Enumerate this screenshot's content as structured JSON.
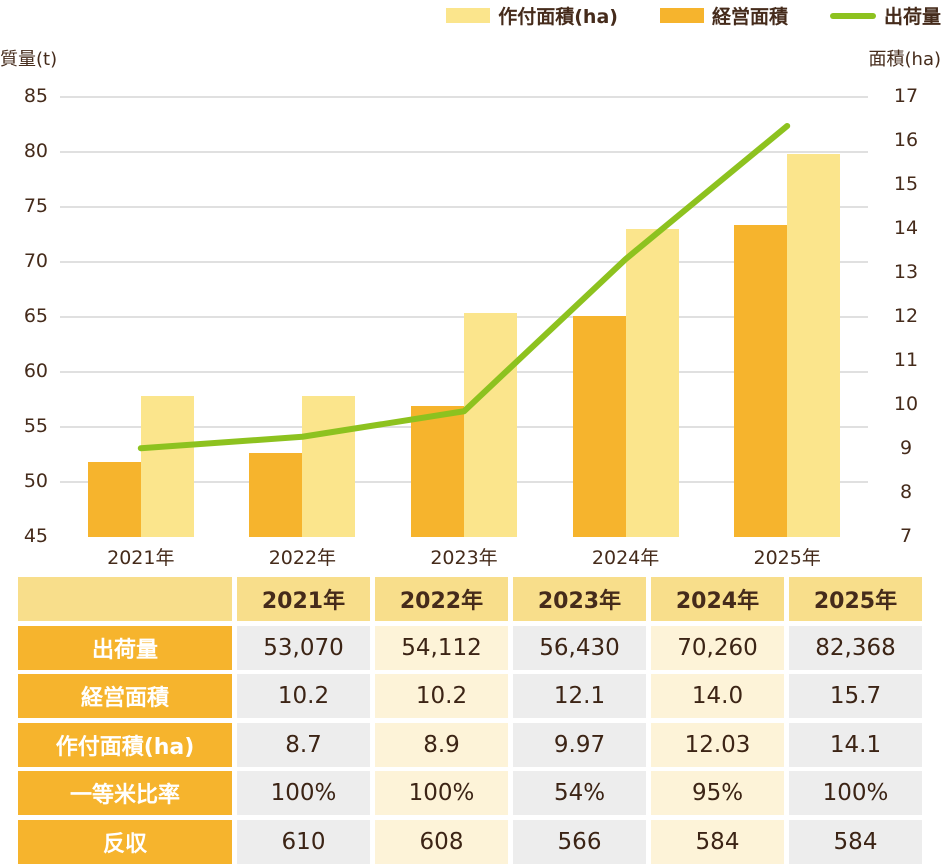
{
  "chart": {
    "left_axis_title": "質量(t)",
    "right_axis_title": "面積(ha)",
    "legend": [
      {
        "label": "作付面積(ha)",
        "color": "#FBE58C",
        "shape": "rect"
      },
      {
        "label": "経営面積",
        "color": "#F6B42D",
        "shape": "rect"
      },
      {
        "label": "出荷量",
        "color": "#8DC21F",
        "shape": "line"
      }
    ]
  },
  "chart_data": {
    "type": "bar+line",
    "categories": [
      "2021年",
      "2022年",
      "2023年",
      "2024年",
      "2025年"
    ],
    "series": [
      {
        "name": "作付面積(ha)",
        "type": "bar",
        "axis": "right",
        "rendered_color": "#F6B42D",
        "values": [
          8.7,
          8.9,
          9.97,
          12.03,
          14.1
        ]
      },
      {
        "name": "経営面積",
        "type": "bar",
        "axis": "right",
        "rendered_color": "#FBE58C",
        "values": [
          10.2,
          10.2,
          12.1,
          14.0,
          15.7
        ]
      },
      {
        "name": "出荷量",
        "type": "line",
        "axis": "left",
        "rendered_color": "#8DC21F",
        "values": [
          53.07,
          54.112,
          56.43,
          70.26,
          82.368
        ]
      }
    ],
    "left_axis": {
      "title": "質量(t)",
      "min": 45,
      "max": 85,
      "step": 5
    },
    "right_axis": {
      "title": "面積(ha)",
      "min": 7,
      "max": 17,
      "step": 1
    },
    "grid": "horizontal gridlines at left-axis ticks 50..85 (none at 45)",
    "legend_position": "top-right",
    "note": "in source image bar fill colors appear swapped relative to legend: orange bars trace 作付面積 values, pale-yellow bars trace 経営面積 values"
  },
  "table": {
    "header": [
      "",
      "2021年",
      "2022年",
      "2023年",
      "2024年",
      "2025年"
    ],
    "rows": [
      {
        "label": "出荷量",
        "values": [
          "53,070",
          "54,112",
          "56,430",
          "70,260",
          "82,368"
        ]
      },
      {
        "label": "経営面積",
        "values": [
          "10.2",
          "10.2",
          "12.1",
          "14.0",
          "15.7"
        ]
      },
      {
        "label": "作付面積(ha)",
        "values": [
          "8.7",
          "8.9",
          "9.97",
          "12.03",
          "14.1"
        ]
      },
      {
        "label": "一等米比率",
        "values": [
          "100%",
          "100%",
          "54%",
          "95%",
          "100%"
        ]
      },
      {
        "label": "反収",
        "values": [
          "610",
          "608",
          "566",
          "584",
          "584"
        ]
      }
    ],
    "colors": {
      "header_bg": "#F8DE8B",
      "row_label_bg": "#F6B42D",
      "cell_gray": "#EDEDED",
      "cell_cream": "#FDF3D8",
      "text": "#3C2415"
    }
  }
}
